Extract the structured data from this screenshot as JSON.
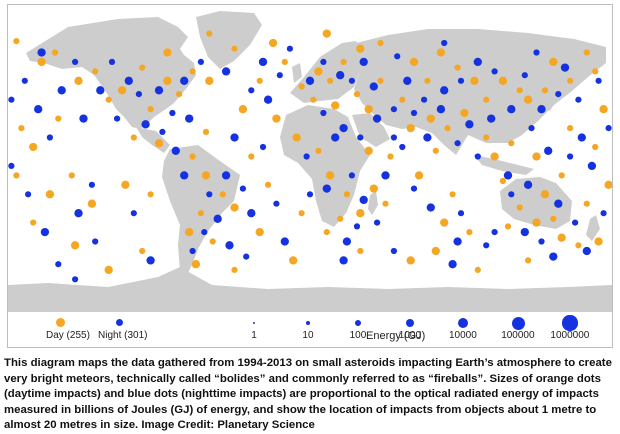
{
  "map": {
    "colors": {
      "ocean": "#ffffff",
      "land": "#cdcdcd",
      "day": "#f5a623",
      "night": "#1432e0"
    }
  },
  "legend": {
    "day_label": "Day (255)",
    "night_label": "Night (301)",
    "energy_label": "Energy (GJ)",
    "energy_values": [
      "1",
      "10",
      "100",
      "1000",
      "10000",
      "100000",
      "1000000"
    ]
  },
  "caption": "This diagram maps the data gathered from 1994-2013 on small asteroids impacting Earth’s atmosphere to create very bright meteors, technically called “bolides” and commonly referred to as “fireballs”. Sizes of orange dots (daytime impacts) and blue dots (nighttime impacts) are proportional to the optical radiated energy of impacts measured in billions of Joules (GJ) of energy, and show the location of impacts from objects about 1 metre to almost 20 metres in size. Image Credit: Planetary Science",
  "impacts": {
    "day": [
      [
        -175,
        66,
        2
      ],
      [
        -160,
        55,
        3
      ],
      [
        -152,
        60,
        2
      ],
      [
        -138,
        45,
        3
      ],
      [
        -128,
        50,
        2
      ],
      [
        -172,
        20,
        2
      ],
      [
        -165,
        10,
        3
      ],
      [
        -150,
        25,
        2
      ],
      [
        -142,
        -5,
        2
      ],
      [
        -130,
        -20,
        3
      ],
      [
        -165,
        -30,
        2
      ],
      [
        -140,
        -42,
        3
      ],
      [
        -120,
        35,
        2
      ],
      [
        -112,
        40,
        3
      ],
      [
        -100,
        52,
        2
      ],
      [
        -95,
        30,
        2
      ],
      [
        -85,
        45,
        3
      ],
      [
        -78,
        38,
        2
      ],
      [
        -70,
        50,
        2
      ],
      [
        -60,
        45,
        3
      ],
      [
        -105,
        15,
        2
      ],
      [
        -90,
        12,
        3
      ],
      [
        -62,
        18,
        2
      ],
      [
        -70,
        5,
        2
      ],
      [
        -62,
        -5,
        3
      ],
      [
        -52,
        -15,
        2
      ],
      [
        -45,
        -22,
        3
      ],
      [
        -65,
        -25,
        2
      ],
      [
        -72,
        -35,
        3
      ],
      [
        -58,
        -40,
        2
      ],
      [
        -68,
        -52,
        3
      ],
      [
        -45,
        -55,
        2
      ],
      [
        -30,
        -35,
        3
      ],
      [
        -25,
        -10,
        2
      ],
      [
        -35,
        5,
        2
      ],
      [
        -40,
        30,
        3
      ],
      [
        -30,
        45,
        2
      ],
      [
        -20,
        25,
        3
      ],
      [
        -15,
        55,
        2
      ],
      [
        -45,
        62,
        2
      ],
      [
        -22,
        65,
        3
      ],
      [
        -5,
        42,
        2
      ],
      [
        5,
        50,
        3
      ],
      [
        12,
        45,
        2
      ],
      [
        20,
        55,
        2
      ],
      [
        30,
        62,
        3
      ],
      [
        2,
        35,
        2
      ],
      [
        15,
        32,
        3
      ],
      [
        28,
        38,
        2
      ],
      [
        35,
        30,
        3
      ],
      [
        42,
        45,
        2
      ],
      [
        -8,
        15,
        3
      ],
      [
        5,
        8,
        2
      ],
      [
        12,
        -5,
        3
      ],
      [
        22,
        -15,
        2
      ],
      [
        30,
        -25,
        3
      ],
      [
        18,
        -28,
        2
      ],
      [
        38,
        -12,
        3
      ],
      [
        45,
        -20,
        2
      ],
      [
        48,
        5,
        2
      ],
      [
        35,
        8,
        3
      ],
      [
        55,
        35,
        2
      ],
      [
        62,
        55,
        3
      ],
      [
        70,
        45,
        2
      ],
      [
        78,
        60,
        3
      ],
      [
        88,
        52,
        2
      ],
      [
        98,
        45,
        3
      ],
      [
        105,
        35,
        2
      ],
      [
        115,
        45,
        3
      ],
      [
        125,
        40,
        2
      ],
      [
        72,
        25,
        3
      ],
      [
        82,
        20,
        2
      ],
      [
        92,
        28,
        3
      ],
      [
        105,
        15,
        2
      ],
      [
        110,
        5,
        3
      ],
      [
        120,
        12,
        2
      ],
      [
        60,
        20,
        3
      ],
      [
        75,
        8,
        2
      ],
      [
        65,
        -5,
        3
      ],
      [
        85,
        -15,
        2
      ],
      [
        80,
        -30,
        3
      ],
      [
        95,
        -35,
        2
      ],
      [
        130,
        35,
        3
      ],
      [
        140,
        40,
        2
      ],
      [
        145,
        55,
        3
      ],
      [
        155,
        45,
        2
      ],
      [
        165,
        60,
        2
      ],
      [
        135,
        5,
        3
      ],
      [
        150,
        -5,
        2
      ],
      [
        140,
        -15,
        3
      ],
      [
        125,
        -22,
        2
      ],
      [
        135,
        -30,
        3
      ],
      [
        145,
        -28,
        2
      ],
      [
        118,
        -32,
        2
      ],
      [
        150,
        -38,
        3
      ],
      [
        160,
        -42,
        2
      ],
      [
        172,
        -40,
        3
      ],
      [
        165,
        -20,
        2
      ],
      [
        178,
        -10,
        3
      ],
      [
        170,
        10,
        2
      ],
      [
        175,
        30,
        3
      ],
      [
        155,
        20,
        2
      ],
      [
        -110,
        -10,
        3
      ],
      [
        -100,
        -45,
        2
      ],
      [
        -120,
        -55,
        3
      ],
      [
        30,
        -45,
        2
      ],
      [
        60,
        -50,
        3
      ],
      [
        100,
        -55,
        2
      ],
      [
        -10,
        -50,
        3
      ],
      [
        10,
        -35,
        2
      ],
      [
        -155,
        -15,
        3
      ],
      [
        -175,
        -5,
        2
      ],
      [
        115,
        -8,
        2
      ],
      [
        42,
        65,
        2
      ],
      [
        -85,
        60,
        3
      ],
      [
        -95,
        -15,
        2
      ],
      [
        75,
        -45,
        3
      ],
      [
        -5,
        -25,
        2
      ],
      [
        170,
        50,
        2
      ],
      [
        130,
        -50,
        2
      ],
      [
        -60,
        70,
        2
      ],
      [
        10,
        70,
        3
      ]
    ],
    "night": [
      [
        -170,
        45,
        2
      ],
      [
        -162,
        30,
        3
      ],
      [
        -155,
        15,
        2
      ],
      [
        -148,
        40,
        3
      ],
      [
        -140,
        55,
        2
      ],
      [
        -135,
        25,
        3
      ],
      [
        -168,
        -15,
        2
      ],
      [
        -158,
        -35,
        3
      ],
      [
        -150,
        -52,
        2
      ],
      [
        -138,
        -25,
        3
      ],
      [
        -128,
        -40,
        2
      ],
      [
        -178,
        0,
        2
      ],
      [
        -125,
        40,
        3
      ],
      [
        -118,
        55,
        2
      ],
      [
        -108,
        45,
        3
      ],
      [
        -102,
        38,
        2
      ],
      [
        -90,
        40,
        3
      ],
      [
        -82,
        28,
        2
      ],
      [
        -75,
        45,
        3
      ],
      [
        -65,
        55,
        2
      ],
      [
        -98,
        22,
        3
      ],
      [
        -88,
        18,
        2
      ],
      [
        -72,
        25,
        3
      ],
      [
        -115,
        25,
        2
      ],
      [
        -75,
        -5,
        3
      ],
      [
        -60,
        -15,
        2
      ],
      [
        -50,
        -5,
        3
      ],
      [
        -40,
        -12,
        2
      ],
      [
        -55,
        -28,
        3
      ],
      [
        -63,
        -35,
        2
      ],
      [
        -48,
        -42,
        3
      ],
      [
        -70,
        -45,
        2
      ],
      [
        -38,
        -48,
        2
      ],
      [
        -35,
        -25,
        3
      ],
      [
        -28,
        10,
        2
      ],
      [
        -45,
        15,
        3
      ],
      [
        -35,
        40,
        2
      ],
      [
        -25,
        35,
        3
      ],
      [
        -18,
        48,
        2
      ],
      [
        -28,
        55,
        3
      ],
      [
        -12,
        62,
        2
      ],
      [
        -50,
        50,
        3
      ],
      [
        0,
        45,
        3
      ],
      [
        8,
        55,
        2
      ],
      [
        18,
        48,
        3
      ],
      [
        25,
        45,
        2
      ],
      [
        32,
        55,
        3
      ],
      [
        8,
        28,
        2
      ],
      [
        20,
        20,
        3
      ],
      [
        30,
        15,
        2
      ],
      [
        40,
        25,
        3
      ],
      [
        -2,
        5,
        2
      ],
      [
        10,
        -12,
        3
      ],
      [
        25,
        -5,
        2
      ],
      [
        32,
        -18,
        3
      ],
      [
        28,
        -32,
        2
      ],
      [
        22,
        -40,
        3
      ],
      [
        40,
        -30,
        2
      ],
      [
        45,
        -5,
        3
      ],
      [
        50,
        15,
        2
      ],
      [
        38,
        42,
        3
      ],
      [
        50,
        30,
        2
      ],
      [
        58,
        45,
        3
      ],
      [
        68,
        35,
        2
      ],
      [
        80,
        40,
        3
      ],
      [
        90,
        45,
        2
      ],
      [
        100,
        55,
        3
      ],
      [
        110,
        50,
        2
      ],
      [
        120,
        30,
        3
      ],
      [
        128,
        48,
        2
      ],
      [
        78,
        30,
        3
      ],
      [
        88,
        12,
        2
      ],
      [
        95,
        22,
        3
      ],
      [
        100,
        5,
        2
      ],
      [
        108,
        25,
        3
      ],
      [
        55,
        10,
        2
      ],
      [
        70,
        15,
        3
      ],
      [
        62,
        -12,
        2
      ],
      [
        72,
        -22,
        3
      ],
      [
        90,
        -25,
        2
      ],
      [
        88,
        -40,
        3
      ],
      [
        105,
        -42,
        2
      ],
      [
        132,
        20,
        2
      ],
      [
        138,
        30,
        3
      ],
      [
        148,
        38,
        2
      ],
      [
        152,
        52,
        3
      ],
      [
        160,
        35,
        2
      ],
      [
        142,
        8,
        3
      ],
      [
        155,
        5,
        2
      ],
      [
        130,
        -10,
        3
      ],
      [
        120,
        -15,
        2
      ],
      [
        128,
        -35,
        3
      ],
      [
        138,
        -40,
        2
      ],
      [
        148,
        -20,
        3
      ],
      [
        158,
        -30,
        2
      ],
      [
        165,
        -45,
        3
      ],
      [
        175,
        -25,
        2
      ],
      [
        168,
        0,
        3
      ],
      [
        178,
        20,
        2
      ],
      [
        162,
        15,
        3
      ],
      [
        172,
        45,
        2
      ],
      [
        145,
        -48,
        3
      ],
      [
        -105,
        -25,
        2
      ],
      [
        -95,
        -50,
        3
      ],
      [
        -130,
        -10,
        2
      ],
      [
        20,
        -50,
        3
      ],
      [
        50,
        -45,
        2
      ],
      [
        85,
        -52,
        3
      ],
      [
        110,
        -35,
        2
      ],
      [
        -15,
        -40,
        3
      ],
      [
        0,
        -15,
        2
      ],
      [
        -160,
        60,
        3
      ],
      [
        -178,
        35,
        2
      ],
      [
        118,
        -5,
        3
      ],
      [
        52,
        58,
        2
      ],
      [
        -80,
        8,
        3
      ],
      [
        62,
        28,
        2
      ],
      [
        15,
        15,
        3
      ],
      [
        -20,
        -20,
        2
      ],
      [
        135,
        60,
        2
      ],
      [
        -140,
        -60,
        2
      ],
      [
        80,
        65,
        2
      ]
    ]
  }
}
